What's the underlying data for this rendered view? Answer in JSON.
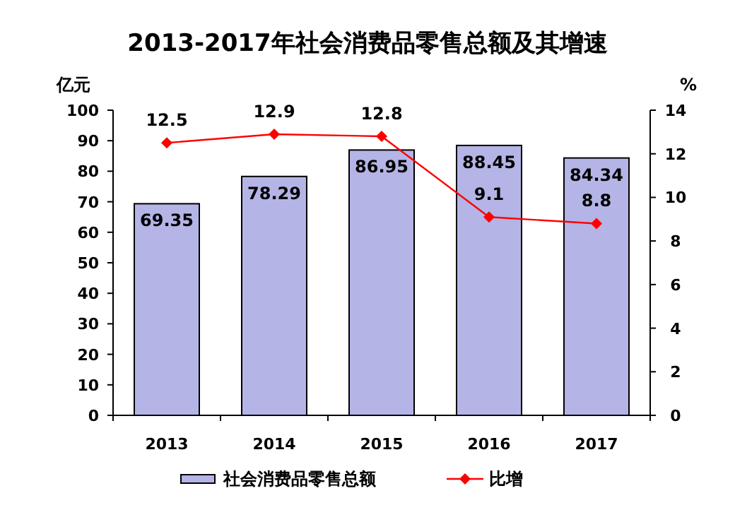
{
  "chart_data": {
    "type": "bar",
    "title": "2013-2017年社会消费品零售总额及其增速",
    "ylabel": "亿元",
    "y2label": "%",
    "categories": [
      "2013",
      "2014",
      "2015",
      "2016",
      "2017"
    ],
    "series": [
      {
        "name": "社会消费品零售总额",
        "color": "#b4b4e6",
        "values": [
          69.35,
          78.29,
          86.95,
          88.45,
          84.34
        ]
      },
      {
        "name": "比增",
        "type": "line",
        "axis": "y2",
        "color": "#ff0000",
        "marker": "diamond",
        "values": [
          12.5,
          12.9,
          12.8,
          9.1,
          8.8
        ]
      }
    ],
    "ylim": [
      0,
      100
    ],
    "yticks": [
      0,
      10,
      20,
      30,
      40,
      50,
      60,
      70,
      80,
      90,
      100
    ],
    "y2lim": [
      0,
      14
    ],
    "y2ticks": [
      0,
      2,
      4,
      6,
      8,
      10,
      12,
      14
    ],
    "data_labels": true,
    "legend": "bottom",
    "grid": false
  }
}
